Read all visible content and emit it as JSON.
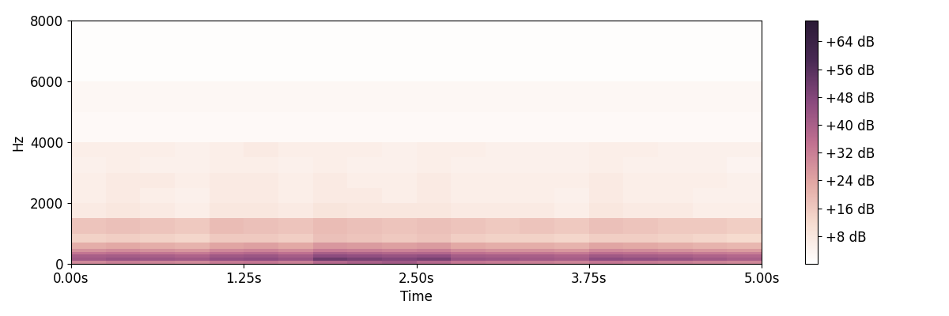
{
  "chart_data": {
    "type": "heatmap",
    "x_label": "Time",
    "y_label": "Hz",
    "x": [
      0,
      0.25,
      0.5,
      0.75,
      1.0,
      1.25,
      1.5,
      1.75,
      2.0,
      2.25,
      2.5,
      2.75,
      3.0,
      3.25,
      3.5,
      3.75,
      4.0,
      4.25,
      4.5,
      4.75,
      5.0
    ],
    "y": [
      0,
      100,
      200,
      300,
      400,
      500,
      700,
      1000,
      1500,
      2000,
      2500,
      3000,
      3500,
      4000,
      5000,
      6000,
      7000,
      8000
    ],
    "cells": [
      [
        30,
        32,
        31,
        30,
        33,
        34,
        32,
        38,
        40,
        42,
        38,
        34,
        33,
        32,
        31,
        34,
        33,
        32,
        31,
        30
      ],
      [
        42,
        44,
        43,
        42,
        45,
        46,
        44,
        52,
        50,
        48,
        50,
        44,
        43,
        42,
        41,
        46,
        45,
        44,
        42,
        40
      ],
      [
        40,
        41,
        40,
        39,
        42,
        43,
        41,
        46,
        45,
        44,
        45,
        41,
        40,
        40,
        39,
        42,
        41,
        40,
        39,
        38
      ],
      [
        34,
        35,
        34,
        33,
        36,
        37,
        35,
        40,
        39,
        38,
        38,
        35,
        34,
        34,
        33,
        36,
        35,
        34,
        33,
        32
      ],
      [
        28,
        29,
        28,
        27,
        30,
        31,
        29,
        33,
        32,
        31,
        32,
        29,
        28,
        28,
        27,
        30,
        29,
        28,
        27,
        26
      ],
      [
        22,
        23,
        22,
        21,
        24,
        25,
        23,
        27,
        26,
        25,
        26,
        23,
        22,
        22,
        21,
        24,
        23,
        22,
        21,
        20
      ],
      [
        14,
        15,
        14,
        13,
        16,
        16,
        15,
        18,
        17,
        16,
        17,
        15,
        14,
        14,
        13,
        15,
        15,
        14,
        13,
        12
      ],
      [
        17,
        18,
        17,
        16,
        19,
        18,
        17,
        19,
        18,
        17,
        18,
        17,
        16,
        17,
        16,
        18,
        17,
        16,
        16,
        15
      ],
      [
        7,
        8,
        7,
        6,
        8,
        8,
        7,
        9,
        8,
        8,
        8,
        7,
        7,
        7,
        6,
        8,
        7,
        7,
        6,
        6
      ],
      [
        6,
        7,
        6,
        5,
        7,
        7,
        6,
        7,
        7,
        6,
        7,
        6,
        6,
        6,
        5,
        7,
        6,
        6,
        5,
        5
      ],
      [
        6,
        7,
        7,
        6,
        7,
        7,
        6,
        7,
        6,
        6,
        7,
        6,
        6,
        6,
        6,
        7,
        6,
        6,
        6,
        5
      ],
      [
        5,
        6,
        5,
        5,
        6,
        6,
        5,
        6,
        5,
        5,
        6,
        5,
        5,
        5,
        5,
        6,
        5,
        5,
        5,
        4
      ],
      [
        6,
        6,
        6,
        5,
        6,
        7,
        6,
        6,
        6,
        5,
        6,
        6,
        5,
        5,
        5,
        6,
        6,
        5,
        5,
        5
      ],
      [
        2,
        2,
        2,
        2,
        2,
        2,
        2,
        2,
        2,
        2,
        2,
        2,
        2,
        2,
        2,
        2,
        2,
        2,
        2,
        2
      ],
      [
        3,
        3,
        3,
        3,
        3,
        3,
        3,
        3,
        3,
        3,
        3,
        3,
        3,
        3,
        3,
        3,
        3,
        3,
        3,
        3
      ],
      [
        1,
        1,
        1,
        1,
        1,
        1,
        1,
        1,
        1,
        1,
        1,
        1,
        1,
        1,
        1,
        1,
        1,
        1,
        1,
        1
      ],
      [
        1,
        1,
        1,
        1,
        1,
        1,
        1,
        1,
        1,
        1,
        1,
        1,
        1,
        1,
        1,
        1,
        1,
        1,
        1,
        1
      ]
    ],
    "xlim": [
      0,
      5.0
    ],
    "xticks": [
      {
        "value": 0,
        "label": "0.00s"
      },
      {
        "value": 1.25,
        "label": "1.25s"
      },
      {
        "value": 2.5,
        "label": "2.50s"
      },
      {
        "value": 3.75,
        "label": "3.75s"
      },
      {
        "value": 5.0,
        "label": "5.00s"
      }
    ],
    "ylim": [
      0,
      8000
    ],
    "yticks": [
      0,
      2000,
      4000,
      6000,
      8000
    ],
    "colorbar_lim": [
      0,
      70
    ],
    "colorbar_ticks": [
      {
        "value": 8,
        "label": "+8 dB"
      },
      {
        "value": 16,
        "label": "+16 dB"
      },
      {
        "value": 24,
        "label": "+24 dB"
      },
      {
        "value": 32,
        "label": "+32 dB"
      },
      {
        "value": 40,
        "label": "+40 dB"
      },
      {
        "value": 48,
        "label": "+48 dB"
      },
      {
        "value": 56,
        "label": "+56 dB"
      },
      {
        "value": 64,
        "label": "+64 dB"
      }
    ]
  }
}
